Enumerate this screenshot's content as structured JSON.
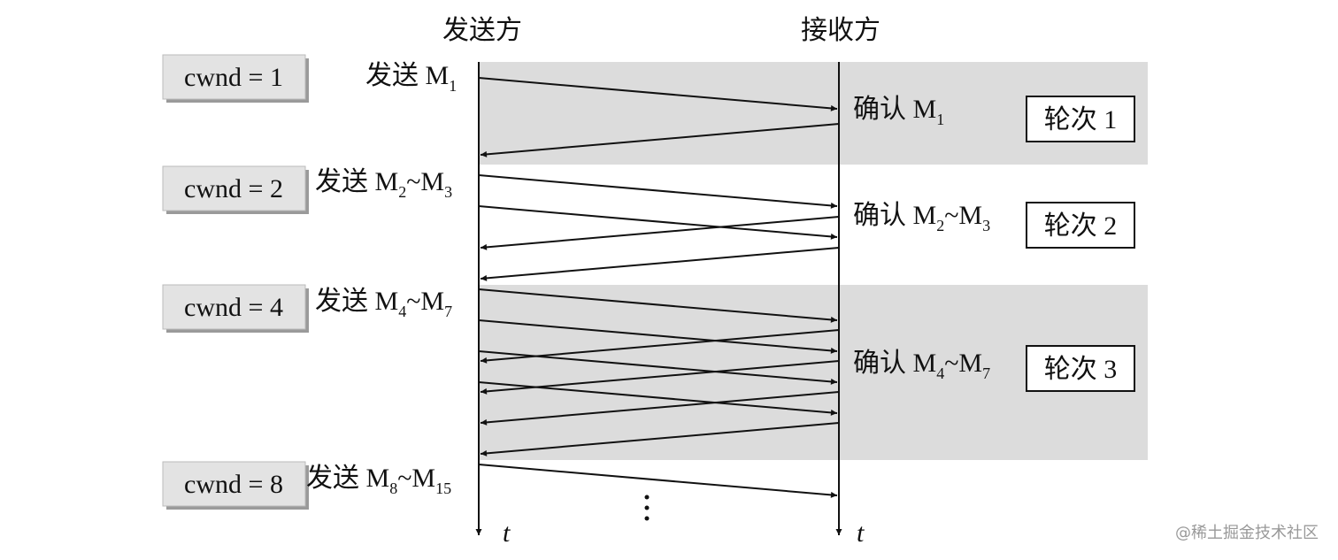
{
  "headers": {
    "sender": "发送方",
    "receiver": "接收方"
  },
  "rounds": [
    {
      "cwnd": "cwnd = 1",
      "send": [
        {
          "text": "发送 M"
        },
        {
          "text": "1",
          "sub": true
        }
      ],
      "ack": [
        {
          "text": "确认 M"
        },
        {
          "text": "1",
          "sub": true
        }
      ],
      "round": "轮次 1"
    },
    {
      "cwnd": "cwnd = 2",
      "send": [
        {
          "text": "发送 M"
        },
        {
          "text": "2",
          "sub": true
        },
        {
          "text": "~M"
        },
        {
          "text": "3",
          "sub": true
        }
      ],
      "ack": [
        {
          "text": "确认 M"
        },
        {
          "text": "2",
          "sub": true
        },
        {
          "text": "~M"
        },
        {
          "text": "3",
          "sub": true
        }
      ],
      "round": "轮次 2"
    },
    {
      "cwnd": "cwnd = 4",
      "send": [
        {
          "text": "发送 M"
        },
        {
          "text": "4",
          "sub": true
        },
        {
          "text": "~M"
        },
        {
          "text": "7",
          "sub": true
        }
      ],
      "ack": [
        {
          "text": "确认 M"
        },
        {
          "text": "4",
          "sub": true
        },
        {
          "text": "~M"
        },
        {
          "text": "7",
          "sub": true
        }
      ],
      "round": "轮次 3"
    },
    {
      "cwnd": "cwnd = 8",
      "send": [
        {
          "text": "发送 M"
        },
        {
          "text": "8",
          "sub": true
        },
        {
          "text": "~M"
        },
        {
          "text": "15",
          "sub": true
        }
      ]
    }
  ],
  "time_axis": [
    "t",
    "t"
  ],
  "watermark": "@稀土掘金技术社区"
}
